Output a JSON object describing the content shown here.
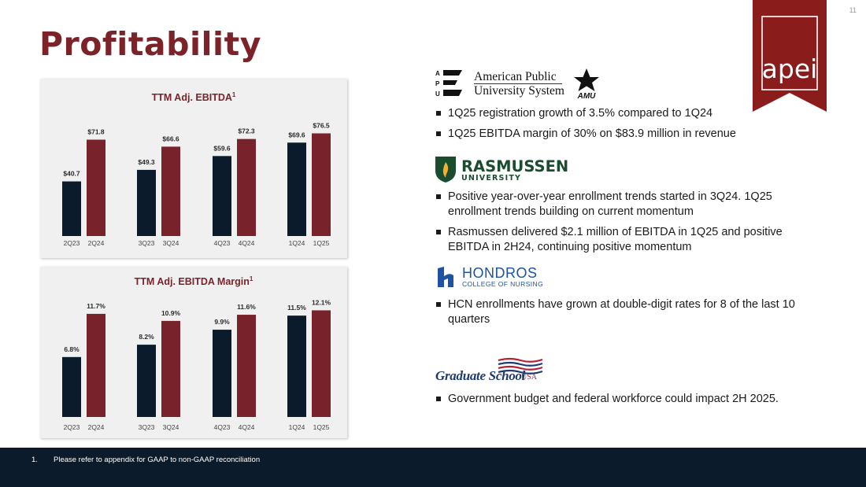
{
  "page_number": "11",
  "title": "Profitability",
  "brand": {
    "logo_text": "apei",
    "color": "#8b1c1c"
  },
  "colors": {
    "series_prior": "#0c1b2b",
    "series_current": "#78232b",
    "title": "#7b2328"
  },
  "chart_data": [
    {
      "type": "bar",
      "title": "TTM Adj. EBITDA",
      "title_sup": "1",
      "categories": [
        "2Q23",
        "2Q24",
        "3Q23",
        "3Q24",
        "4Q23",
        "4Q24",
        "1Q24",
        "1Q25"
      ],
      "values": [
        40.7,
        71.8,
        49.3,
        66.6,
        59.6,
        72.3,
        69.6,
        76.5
      ],
      "data_labels": [
        "$40.7",
        "$71.8",
        "$49.3",
        "$66.6",
        "$59.6",
        "$72.3",
        "$69.6",
        "$76.5"
      ],
      "series_colors": [
        "#0c1b2b",
        "#78232b",
        "#0c1b2b",
        "#78232b",
        "#0c1b2b",
        "#78232b",
        "#0c1b2b",
        "#78232b"
      ],
      "ylim": [
        0,
        85
      ],
      "grid": false,
      "legend": "none"
    },
    {
      "type": "bar",
      "title": "TTM Adj. EBITDA Margin",
      "title_sup": "1",
      "categories": [
        "2Q23",
        "2Q24",
        "3Q23",
        "3Q24",
        "4Q23",
        "4Q24",
        "1Q24",
        "1Q25"
      ],
      "values": [
        6.8,
        11.7,
        8.2,
        10.9,
        9.9,
        11.6,
        11.5,
        12.1
      ],
      "data_labels": [
        "6.8%",
        "11.7%",
        "8.2%",
        "10.9%",
        "9.9%",
        "11.6%",
        "11.5%",
        "12.1%"
      ],
      "series_colors": [
        "#0c1b2b",
        "#78232b",
        "#0c1b2b",
        "#78232b",
        "#0c1b2b",
        "#78232b",
        "#0c1b2b",
        "#78232b"
      ],
      "ylim": [
        0,
        13.3
      ],
      "grid": false,
      "legend": "none"
    }
  ],
  "apu": {
    "logo_letters": [
      "A",
      "P",
      "U"
    ],
    "name_line1": "American Public",
    "name_line2": "University System",
    "amu_label": "AMU",
    "bullets": [
      "1Q25 registration growth of 3.5% compared to 1Q24",
      "1Q25 EBITDA margin of 30% on $83.9 million in revenue"
    ]
  },
  "rasmussen": {
    "name": "RASMUSSEN",
    "sub": "UNIVERSITY",
    "bullets": [
      "Positive year-over-year enrollment trends started in 3Q24. 1Q25 enrollment trends building on current momentum",
      "Rasmussen delivered $2.1 million of EBITDA in 1Q25 and positive EBITDA in 2H24, continuing positive momentum"
    ]
  },
  "hondros": {
    "name": "HONDROS",
    "sub": "COLLEGE OF NURSING",
    "bullets": [
      "HCN enrollments have grown at double-digit rates for 8 of the last 10 quarters"
    ]
  },
  "graduate_school": {
    "name": "Graduate School",
    "usa": "USA",
    "bullets": [
      "Government budget and federal workforce could impact 2H 2025."
    ]
  },
  "footnote": {
    "number": "1.",
    "text": "Please refer to appendix for GAAP to non-GAAP reconciliation"
  }
}
